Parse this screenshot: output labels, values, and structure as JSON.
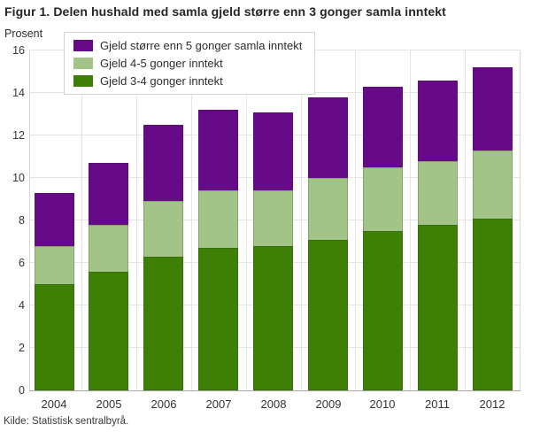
{
  "title": "Figur 1. Delen hushald med samla gjeld større enn 3 gonger samla inntekt",
  "source": "Kilde: Statistisk sentralbyrå.",
  "colors": {
    "purple": "#660a87",
    "light_green": "#a2c486",
    "dark_green": "#3d8005",
    "gridline": "#e5e5e5",
    "axis_line": "#a9a9a9"
  },
  "chart_data": {
    "type": "bar",
    "stacked": true,
    "title": "Figur 1. Delen hushald med samla gjeld større enn 3 gonger samla inntekt",
    "ylabel": "Prosent",
    "xlabel": "",
    "categories": [
      "2004",
      "2005",
      "2006",
      "2007",
      "2008",
      "2009",
      "2010",
      "2011",
      "2012"
    ],
    "series": [
      {
        "name": "Gjeld 3-4 gonger inntekt",
        "color_key": "dark_green",
        "values": [
          5.0,
          5.6,
          6.3,
          6.7,
          6.8,
          7.1,
          7.5,
          7.8,
          8.1
        ]
      },
      {
        "name": "Gjeld 4-5 gonger inntekt",
        "color_key": "light_green",
        "values": [
          1.8,
          2.2,
          2.6,
          2.7,
          2.6,
          2.9,
          3.0,
          3.0,
          3.2
        ]
      },
      {
        "name": "Gjeld større enn 5 gonger samla inntekt",
        "color_key": "purple",
        "values": [
          2.5,
          2.9,
          3.6,
          3.8,
          3.7,
          3.8,
          3.8,
          3.8,
          3.9
        ]
      }
    ],
    "stack_totals": [
      9.3,
      10.7,
      12.5,
      13.2,
      13.1,
      13.8,
      14.3,
      14.6,
      15.2
    ],
    "ylim": [
      0,
      16
    ],
    "y_ticks": [
      0,
      2,
      4,
      6,
      8,
      10,
      12,
      14,
      16
    ],
    "grid": true,
    "legend_position": "top-left",
    "legend_order": [
      "Gjeld større enn 5 gonger samla inntekt",
      "Gjeld 4-5 gonger inntekt",
      "Gjeld 3-4 gonger inntekt"
    ]
  }
}
